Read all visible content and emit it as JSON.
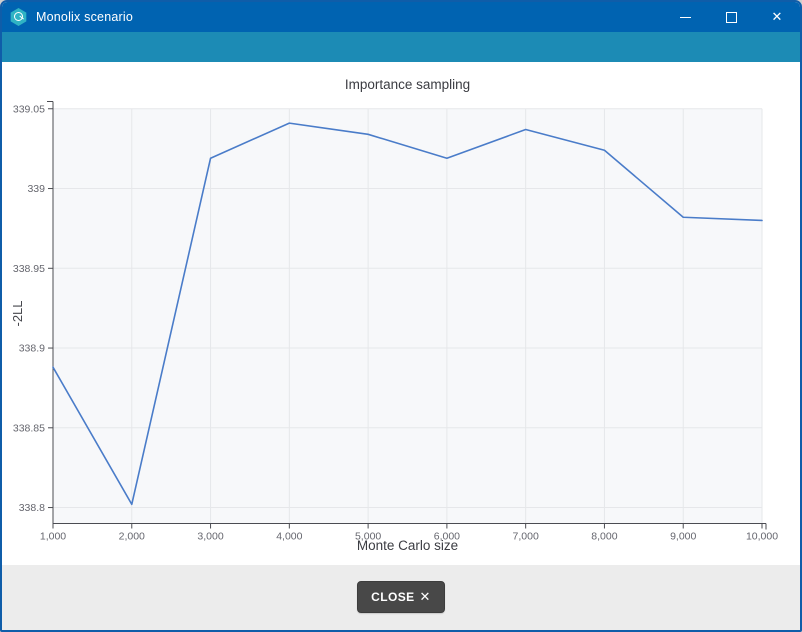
{
  "window": {
    "title": "Monolix scenario",
    "controls": {
      "minimize": "minimize",
      "maximize": "maximize",
      "close": "close",
      "close_glyph": "✕"
    }
  },
  "chart_data": {
    "type": "line",
    "title": "Importance sampling",
    "xlabel": "Monte Carlo size",
    "ylabel": "-2LL",
    "x": [
      1000,
      2000,
      3000,
      4000,
      5000,
      6000,
      7000,
      8000,
      9000,
      10000
    ],
    "values": [
      338.888,
      338.802,
      339.019,
      339.041,
      339.034,
      339.019,
      339.037,
      339.024,
      338.982,
      338.98
    ],
    "xlim": [
      1000,
      10000
    ],
    "ylim": [
      338.79,
      339.053
    ],
    "x_ticks": [
      1000,
      2000,
      3000,
      4000,
      5000,
      6000,
      7000,
      8000,
      9000,
      10000
    ],
    "x_tick_labels": [
      "1,000",
      "2,000",
      "3,000",
      "4,000",
      "5,000",
      "6,000",
      "7,000",
      "8,000",
      "9,000",
      "10,000"
    ],
    "y_ticks": [
      338.8,
      338.85,
      338.9,
      338.95,
      339,
      339.05
    ],
    "y_tick_labels": [
      "338.8",
      "338.85",
      "338.9",
      "338.95",
      "339",
      "339.05"
    ],
    "grid": true,
    "legend": false,
    "line_color": "#4a7cc9",
    "plot_bg_color": "#f7f8fa",
    "grid_color": "#e6e7ea",
    "axis_color": "#4b4c52",
    "tick_label_color": "#65666e"
  },
  "footer": {
    "close_label": "CLOSE",
    "close_icon": "✕"
  }
}
